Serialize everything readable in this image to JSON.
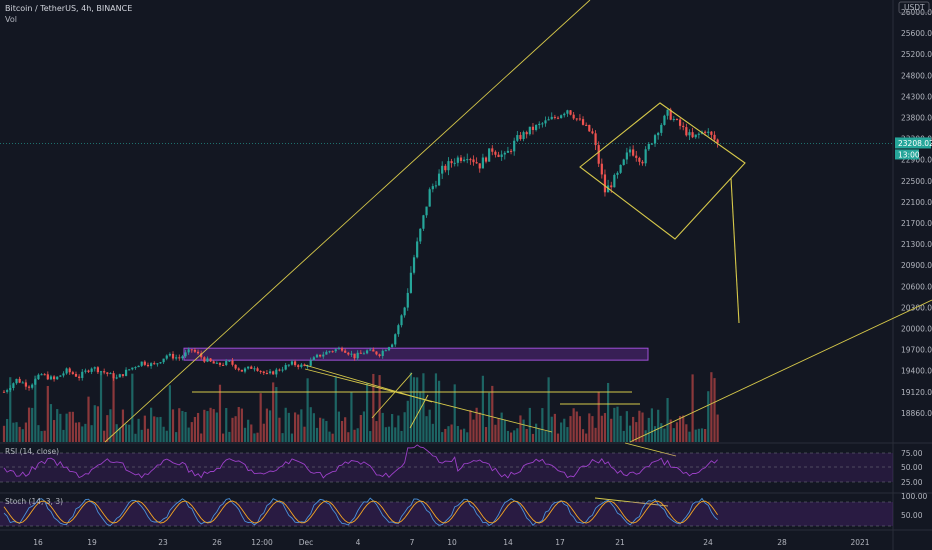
{
  "header": {
    "title": "Bitcoin / TetherUS, 4h, BINANCE",
    "vol_label": "Vol"
  },
  "currency_badge": "USDT",
  "price_tag": {
    "value": "23208.02",
    "countdown": "13:00"
  },
  "colors": {
    "background": "#131722",
    "up": "#26a69a",
    "down": "#ef5350",
    "drawing": "#d6c84a",
    "rsi": "#9c40c8",
    "stoch_k": "#4a90d9",
    "stoch_d": "#f5a623",
    "band": "#2a1a4a",
    "grid": "#1e222d"
  },
  "chart_data": {
    "type": "candlestick",
    "title": "Bitcoin / TetherUS, 4h, BINANCE",
    "y_ticks": [
      26000,
      25600,
      25200,
      24800,
      24300,
      23800,
      23300,
      22900,
      22500,
      22100,
      21700,
      21300,
      20900,
      20600,
      20300,
      20000,
      19700,
      19400,
      19120,
      18860
    ],
    "y_tick_labels": [
      "26000.00",
      "25600.00",
      "25200.00",
      "24800.00",
      "24300.00",
      "23800.00",
      "23300.00",
      "22900.00",
      "22500.00",
      "22100.00",
      "21700.00",
      "21300.00",
      "20900.00",
      "20600.00",
      "20300.00",
      "20000.00",
      "19700.00",
      "19400.00",
      "19120.00",
      "18860.00"
    ],
    "x_tick_labels": [
      "16",
      "19",
      "23",
      "26",
      "12:00",
      "Dec",
      "4",
      "7",
      "10",
      "14",
      "17",
      "21",
      "24",
      "28",
      "2021"
    ],
    "last_price": 23208.02,
    "close_path": [
      [
        0,
        19120
      ],
      [
        4,
        19280
      ],
      [
        8,
        19200
      ],
      [
        12,
        19350
      ],
      [
        16,
        19280
      ],
      [
        20,
        19400
      ],
      [
        24,
        19320
      ],
      [
        28,
        19450
      ],
      [
        32,
        19380
      ],
      [
        36,
        19300
      ],
      [
        40,
        19420
      ],
      [
        44,
        19520
      ],
      [
        48,
        19480
      ],
      [
        52,
        19620
      ],
      [
        56,
        19580
      ],
      [
        60,
        19700
      ],
      [
        64,
        19560
      ],
      [
        68,
        19480
      ],
      [
        72,
        19520
      ],
      [
        76,
        19400
      ],
      [
        80,
        19460
      ],
      [
        84,
        19340
      ],
      [
        88,
        19420
      ],
      [
        92,
        19500
      ],
      [
        96,
        19460
      ],
      [
        100,
        19600
      ],
      [
        104,
        19680
      ],
      [
        108,
        19720
      ],
      [
        112,
        19600
      ],
      [
        116,
        19680
      ],
      [
        120,
        19640
      ],
      [
        124,
        19800
      ],
      [
        128,
        20300
      ],
      [
        132,
        21300
      ],
      [
        136,
        22300
      ],
      [
        140,
        22700
      ],
      [
        144,
        22900
      ],
      [
        148,
        23000
      ],
      [
        152,
        22800
      ],
      [
        156,
        23100
      ],
      [
        160,
        22950
      ],
      [
        164,
        23300
      ],
      [
        168,
        23500
      ],
      [
        172,
        23650
      ],
      [
        176,
        23800
      ],
      [
        180,
        24000
      ],
      [
        184,
        23700
      ],
      [
        188,
        23400
      ],
      [
        192,
        22300
      ],
      [
        196,
        22600
      ],
      [
        200,
        23100
      ],
      [
        204,
        22900
      ],
      [
        208,
        23400
      ],
      [
        212,
        23900
      ],
      [
        216,
        23600
      ],
      [
        220,
        23300
      ],
      [
        224,
        23500
      ],
      [
        228,
        23208
      ]
    ],
    "range_box": {
      "price_low": 19550,
      "price_high": 19720
    },
    "lower_panes": [
      {
        "name": "RSI (14, close)",
        "levels": [
          75.0,
          50.0,
          25.0
        ],
        "level_labels": [
          "75.00",
          "50.00",
          "25.00"
        ]
      },
      {
        "name": "Stoch (14, 3, 3)",
        "levels": [
          100,
          50
        ],
        "level_labels": [
          "100.00",
          "50.00"
        ]
      }
    ]
  }
}
